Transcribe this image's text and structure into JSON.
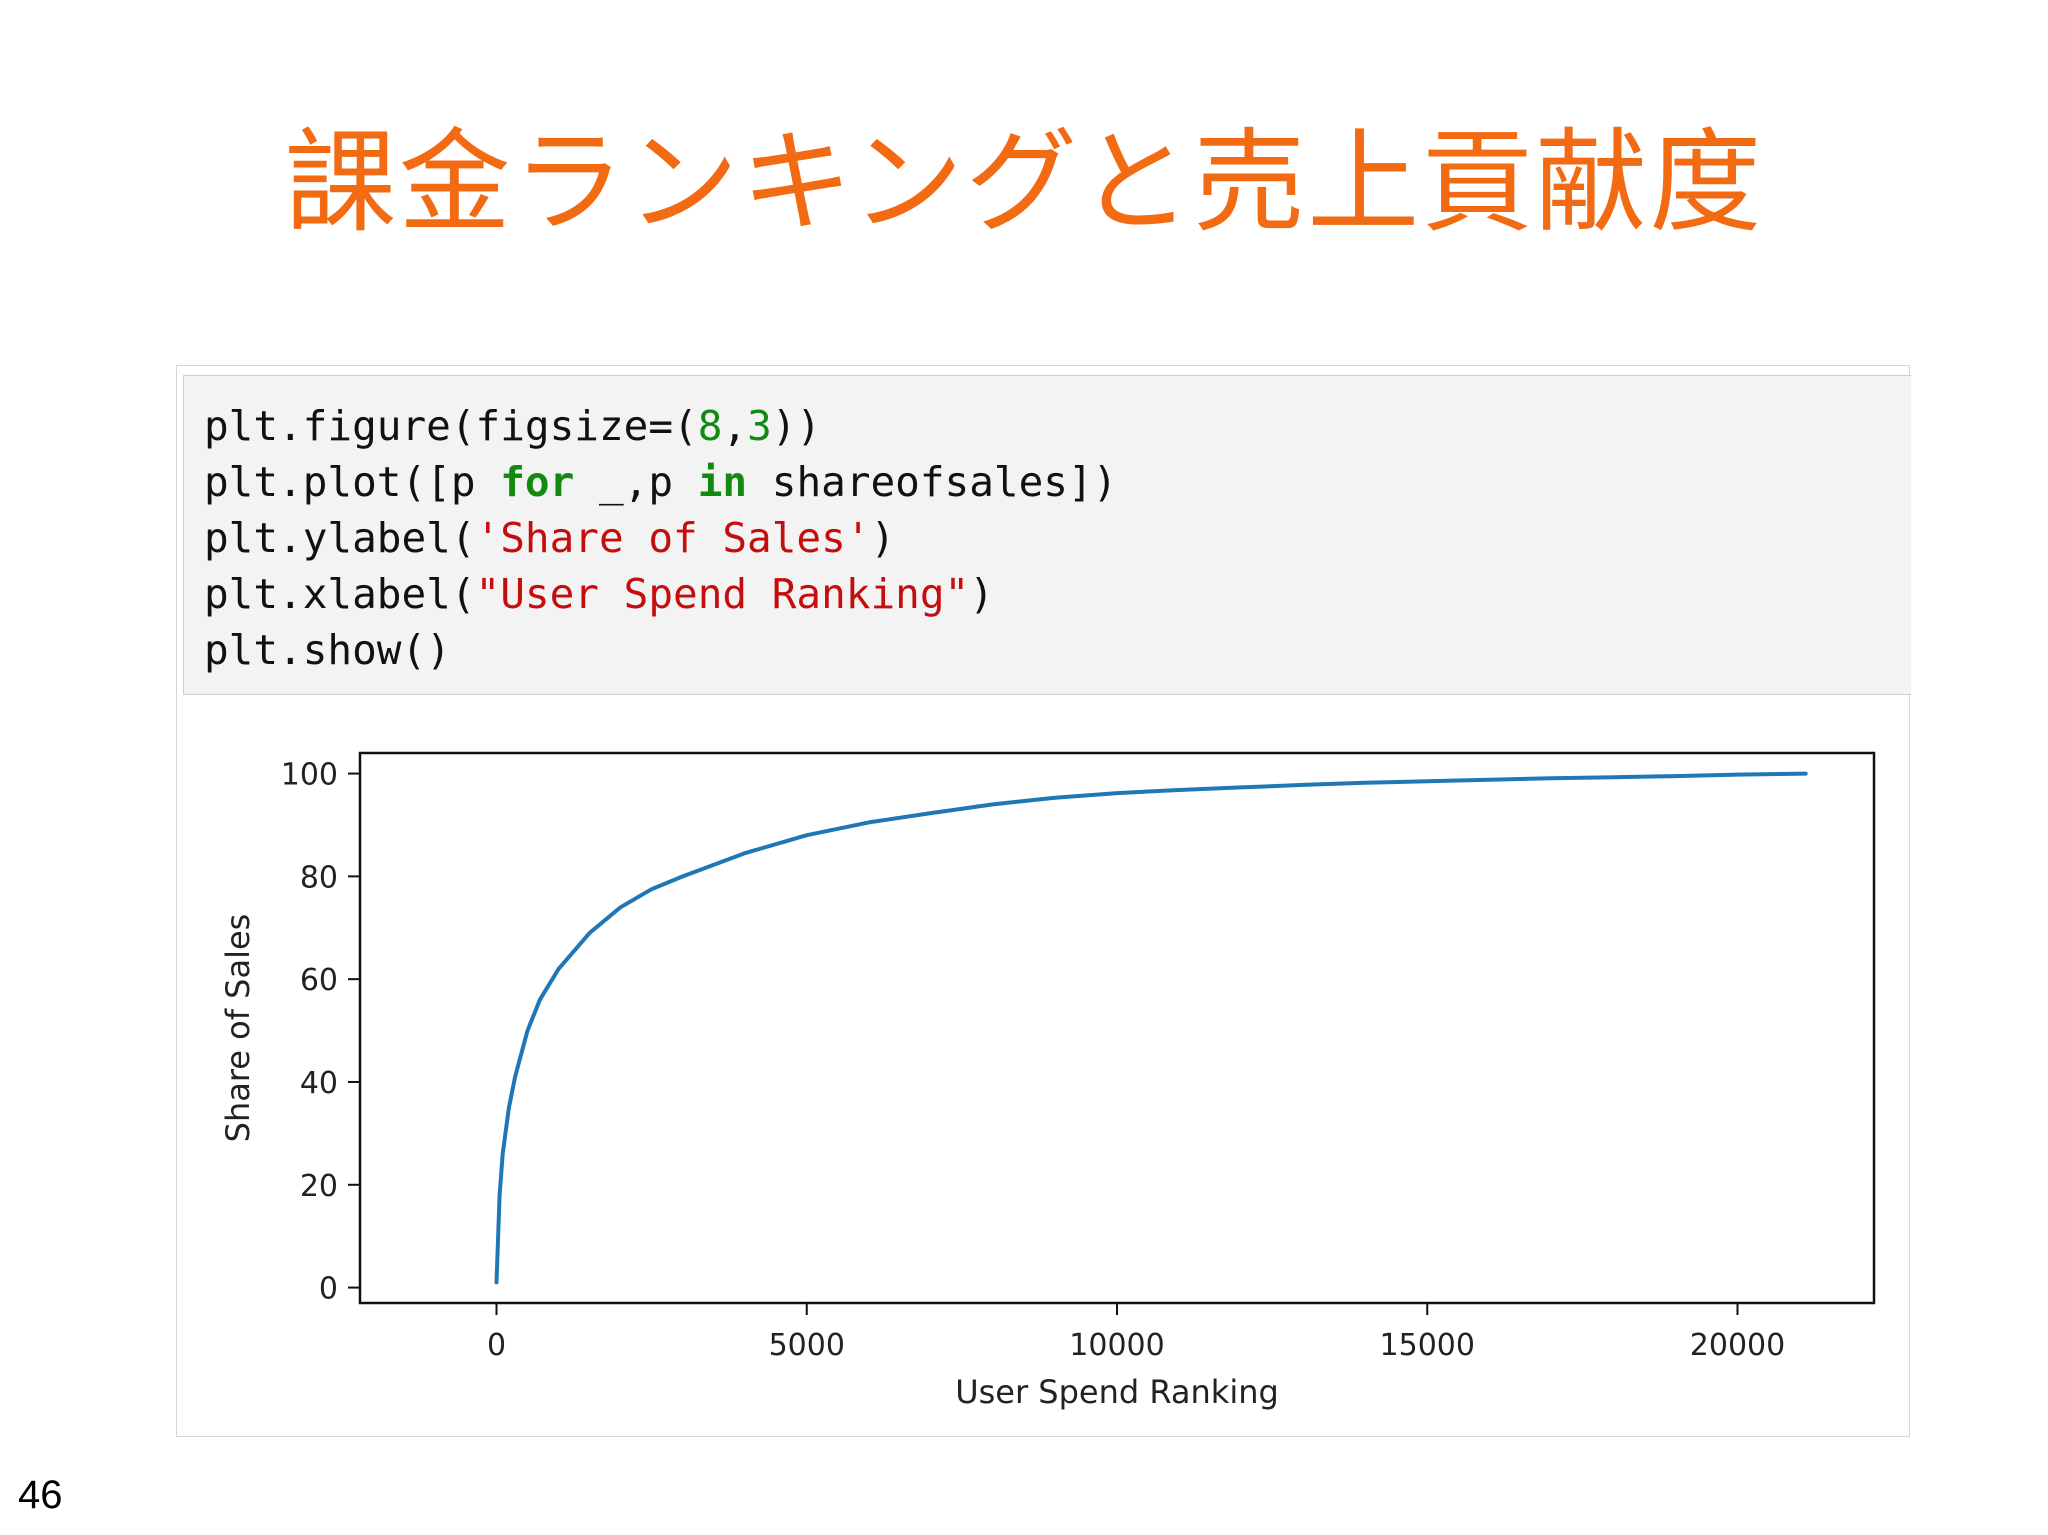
{
  "slide": {
    "title": "課金ランキングと売上貢献度",
    "page_number": "46"
  },
  "code": {
    "lines": [
      [
        {
          "t": "plt.figure(figsize=(",
          "c": "plain"
        },
        {
          "t": "8",
          "c": "num"
        },
        {
          "t": ",",
          "c": "plain"
        },
        {
          "t": "3",
          "c": "num"
        },
        {
          "t": "))",
          "c": "plain"
        }
      ],
      [
        {
          "t": "plt.plot([p ",
          "c": "plain"
        },
        {
          "t": "for",
          "c": "kw"
        },
        {
          "t": " _,p ",
          "c": "plain"
        },
        {
          "t": "in",
          "c": "kw"
        },
        {
          "t": " shareofsales])",
          "c": "plain"
        }
      ],
      [
        {
          "t": "plt.ylabel(",
          "c": "plain"
        },
        {
          "t": "'Share of Sales'",
          "c": "str"
        },
        {
          "t": ")",
          "c": "plain"
        }
      ],
      [
        {
          "t": "plt.xlabel(",
          "c": "plain"
        },
        {
          "t": "\"User Spend Ranking\"",
          "c": "str"
        },
        {
          "t": ")",
          "c": "plain"
        }
      ],
      [
        {
          "t": "plt.show()",
          "c": "plain"
        }
      ]
    ]
  },
  "colors": {
    "title": "#f26a12",
    "line": "#1f77b4",
    "keyword": "#118a11",
    "string": "#c40e0e"
  },
  "chart_data": {
    "type": "line",
    "title": "",
    "xlabel": "User Spend Ranking",
    "ylabel": "Share of Sales",
    "xlim": [
      -2200,
      22200
    ],
    "ylim": [
      -3,
      104
    ],
    "xticks": [
      0,
      5000,
      10000,
      15000,
      20000
    ],
    "yticks": [
      0,
      20,
      40,
      60,
      80,
      100
    ],
    "grid": false,
    "series": [
      {
        "x": [
          0,
          50,
          100,
          200,
          300,
          500,
          700,
          1000,
          1500,
          2000,
          2500,
          3000,
          4000,
          5000,
          6000,
          7000,
          8000,
          9000,
          10000,
          11000,
          12000,
          13000,
          14000,
          15000,
          16000,
          17000,
          18000,
          19000,
          20000,
          21100
        ],
        "values": [
          1,
          18,
          26,
          35,
          41,
          50,
          56,
          62,
          69,
          74,
          77.5,
          80,
          84.5,
          88,
          90.5,
          92.3,
          94,
          95.3,
          96.2,
          96.8,
          97.3,
          97.8,
          98.2,
          98.5,
          98.8,
          99.1,
          99.3,
          99.5,
          99.8,
          100
        ]
      }
    ]
  }
}
